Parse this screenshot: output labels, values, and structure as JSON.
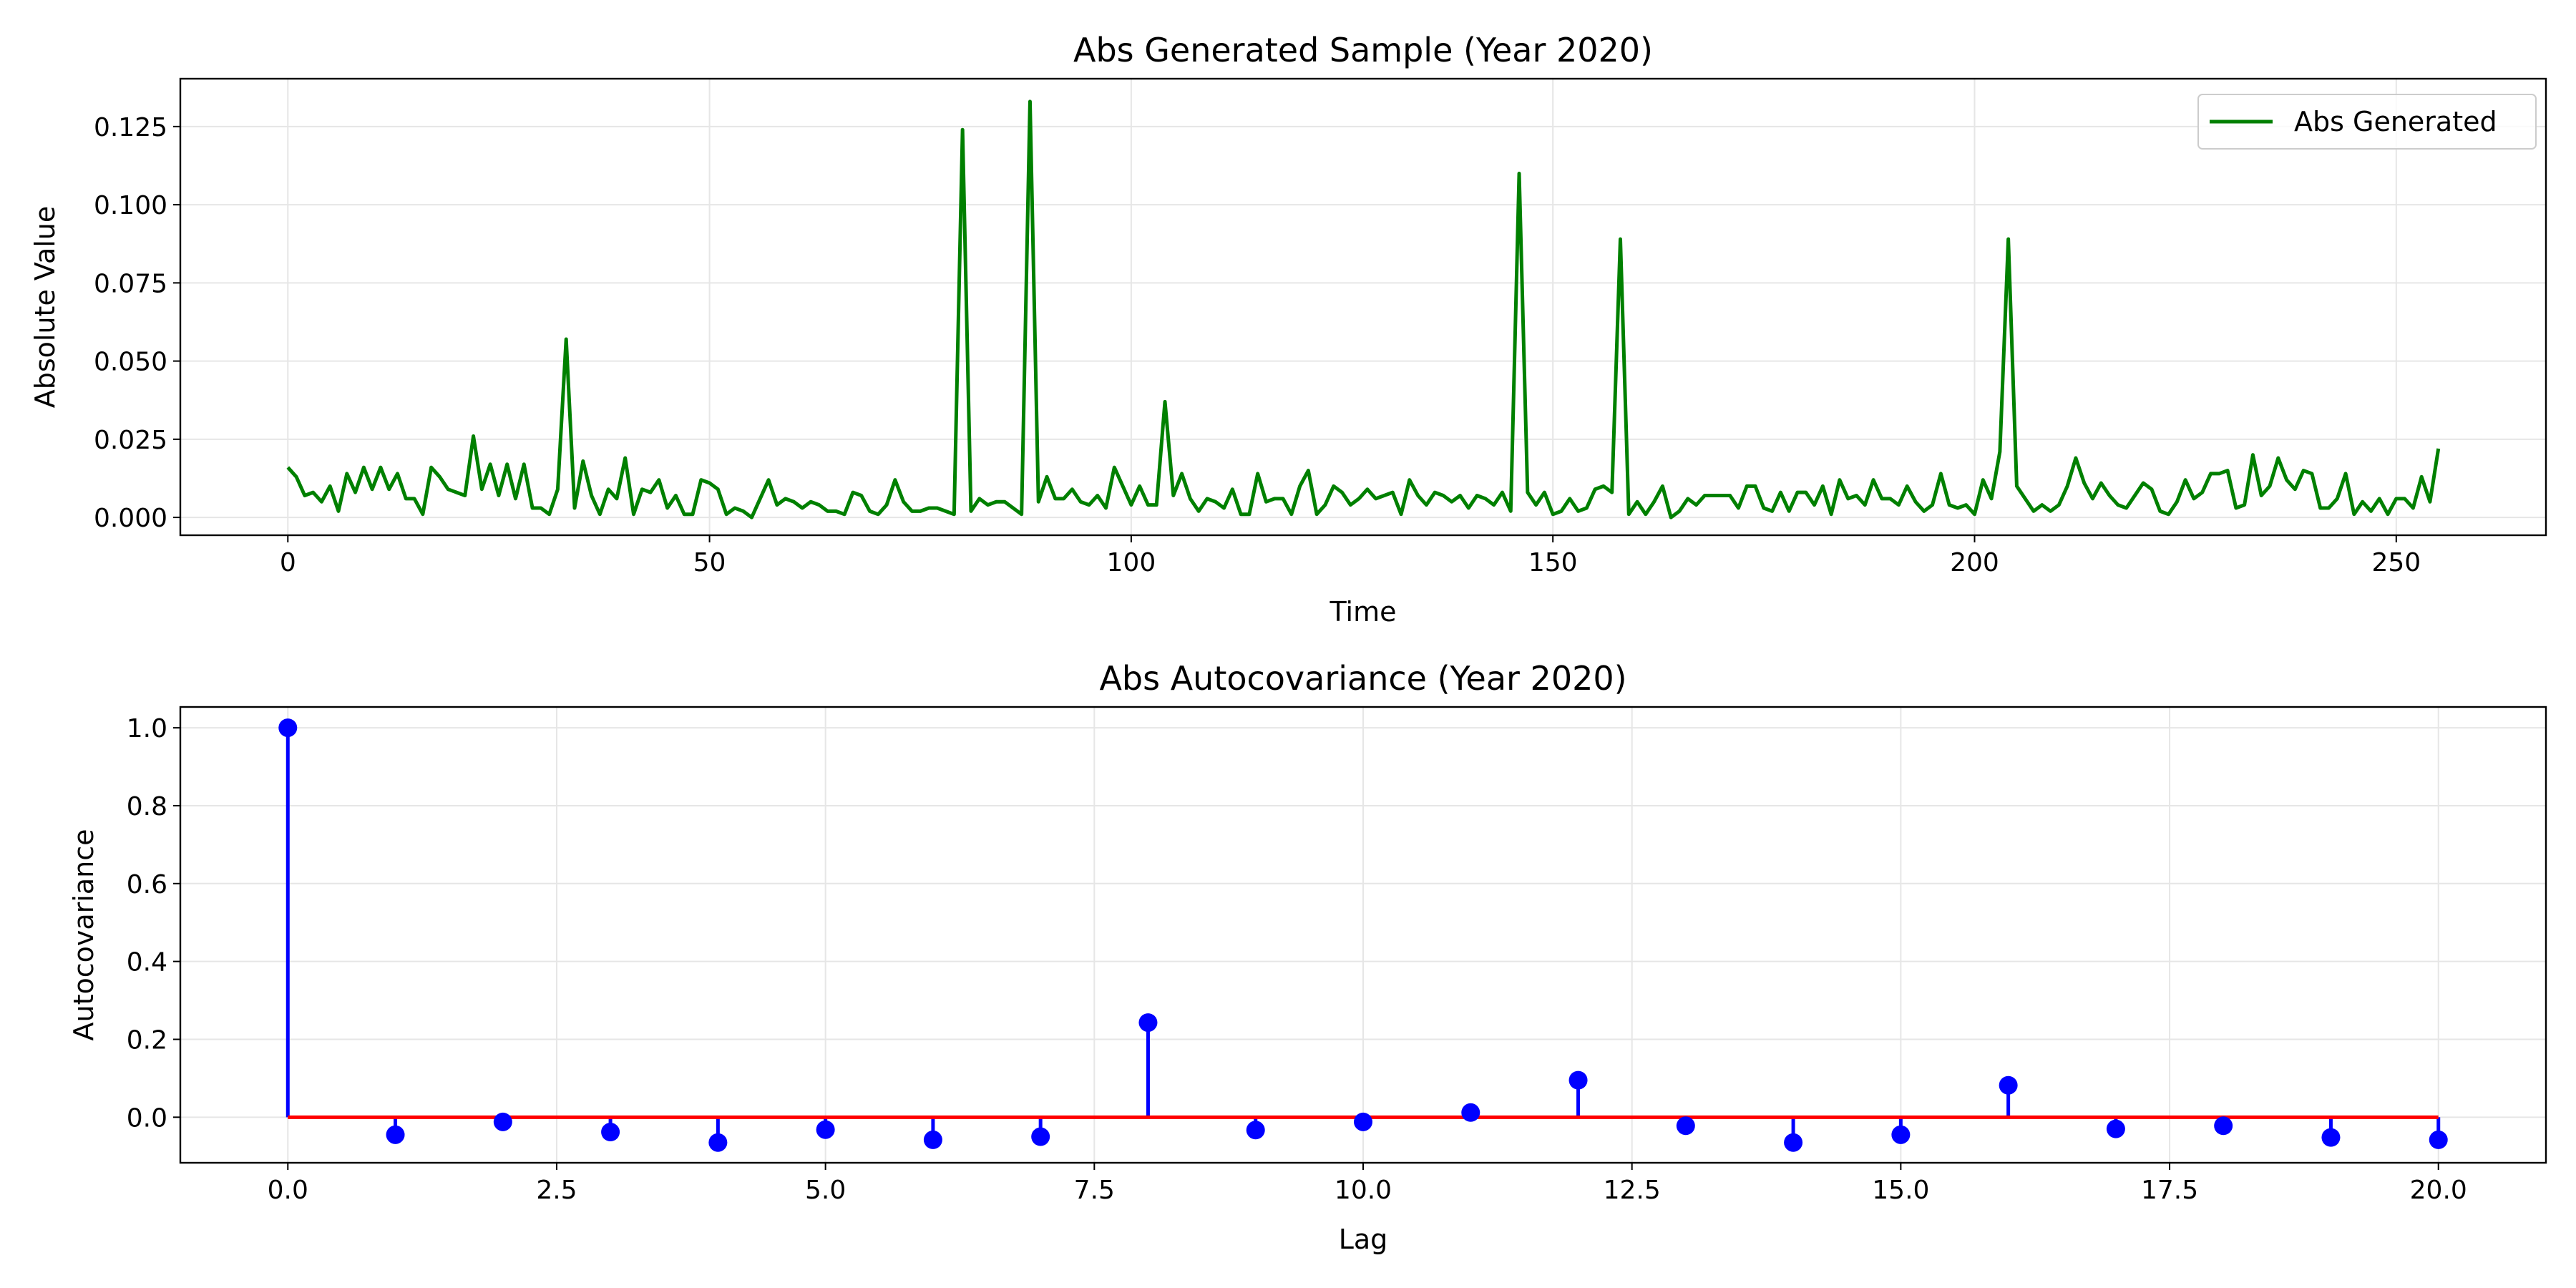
{
  "chart_data": [
    {
      "type": "line",
      "title": "Abs Generated Sample (Year 2020)",
      "xlabel": "Time",
      "ylabel": "Absolute Value",
      "xlim": [
        -12.75,
        267.75
      ],
      "ylim": [
        -0.0057,
        0.1403
      ],
      "xticks": [
        0,
        50,
        100,
        150,
        200,
        250
      ],
      "xtick_labels": [
        "0",
        "50",
        "100",
        "150",
        "200",
        "250"
      ],
      "yticks": [
        0.0,
        0.025,
        0.05,
        0.075,
        0.1,
        0.125
      ],
      "ytick_labels": [
        "0.000",
        "0.025",
        "0.050",
        "0.075",
        "0.100",
        "0.125"
      ],
      "grid": true,
      "legend_position": "top-right",
      "color": "#008000",
      "series": [
        {
          "name": "Abs Generated",
          "x_start": 0,
          "x_step": 1,
          "values": [
            0.016,
            0.013,
            0.007,
            0.008,
            0.005,
            0.01,
            0.002,
            0.014,
            0.008,
            0.016,
            0.009,
            0.016,
            0.009,
            0.014,
            0.006,
            0.006,
            0.001,
            0.016,
            0.013,
            0.009,
            0.008,
            0.007,
            0.026,
            0.009,
            0.017,
            0.007,
            0.017,
            0.006,
            0.017,
            0.003,
            0.003,
            0.001,
            0.009,
            0.057,
            0.003,
            0.018,
            0.007,
            0.001,
            0.009,
            0.006,
            0.019,
            0.001,
            0.009,
            0.008,
            0.012,
            0.003,
            0.007,
            0.001,
            0.001,
            0.012,
            0.011,
            0.009,
            0.001,
            0.003,
            0.002,
            0.0,
            0.006,
            0.012,
            0.004,
            0.006,
            0.005,
            0.003,
            0.005,
            0.004,
            0.002,
            0.002,
            0.001,
            0.008,
            0.007,
            0.002,
            0.001,
            0.004,
            0.012,
            0.005,
            0.002,
            0.002,
            0.003,
            0.003,
            0.002,
            0.001,
            0.124,
            0.002,
            0.006,
            0.004,
            0.005,
            0.005,
            0.003,
            0.001,
            0.133,
            0.005,
            0.013,
            0.006,
            0.006,
            0.009,
            0.005,
            0.004,
            0.007,
            0.003,
            0.016,
            0.01,
            0.004,
            0.01,
            0.004,
            0.004,
            0.037,
            0.007,
            0.014,
            0.006,
            0.002,
            0.006,
            0.005,
            0.003,
            0.009,
            0.001,
            0.001,
            0.014,
            0.005,
            0.006,
            0.006,
            0.001,
            0.01,
            0.015,
            0.001,
            0.004,
            0.01,
            0.008,
            0.004,
            0.006,
            0.009,
            0.006,
            0.007,
            0.008,
            0.001,
            0.012,
            0.007,
            0.004,
            0.008,
            0.007,
            0.005,
            0.007,
            0.003,
            0.007,
            0.006,
            0.004,
            0.008,
            0.002,
            0.11,
            0.008,
            0.004,
            0.008,
            0.001,
            0.002,
            0.006,
            0.002,
            0.003,
            0.009,
            0.01,
            0.008,
            0.089,
            0.001,
            0.005,
            0.001,
            0.005,
            0.01,
            0.0,
            0.002,
            0.006,
            0.004,
            0.007,
            0.007,
            0.007,
            0.007,
            0.003,
            0.01,
            0.01,
            0.003,
            0.002,
            0.008,
            0.002,
            0.008,
            0.008,
            0.004,
            0.01,
            0.001,
            0.012,
            0.006,
            0.007,
            0.004,
            0.012,
            0.006,
            0.006,
            0.004,
            0.01,
            0.005,
            0.002,
            0.004,
            0.014,
            0.004,
            0.003,
            0.004,
            0.001,
            0.012,
            0.006,
            0.021,
            0.089,
            0.01,
            0.006,
            0.002,
            0.004,
            0.002,
            0.004,
            0.01,
            0.019,
            0.011,
            0.006,
            0.011,
            0.007,
            0.004,
            0.003,
            0.007,
            0.011,
            0.009,
            0.002,
            0.001,
            0.005,
            0.012,
            0.006,
            0.008,
            0.014,
            0.014,
            0.015,
            0.003,
            0.004,
            0.02,
            0.007,
            0.01,
            0.019,
            0.012,
            0.009,
            0.015,
            0.014,
            0.003,
            0.003,
            0.006,
            0.014,
            0.001,
            0.005,
            0.002,
            0.006,
            0.001,
            0.006,
            0.006,
            0.003,
            0.013,
            0.005,
            0.022
          ]
        }
      ]
    },
    {
      "type": "stem",
      "title": "Abs Autocovariance (Year 2020)",
      "xlabel": "Lag",
      "ylabel": "Autocovariance",
      "xlim": [
        -1.0,
        21.0
      ],
      "ylim": [
        -0.117,
        1.0535
      ],
      "xticks": [
        0.0,
        2.5,
        5.0,
        7.5,
        10.0,
        12.5,
        15.0,
        17.5,
        20.0
      ],
      "xtick_labels": [
        "0.0",
        "2.5",
        "5.0",
        "7.5",
        "10.0",
        "12.5",
        "15.0",
        "17.5",
        "20.0"
      ],
      "yticks": [
        0.0,
        0.2,
        0.4,
        0.6,
        0.8,
        1.0
      ],
      "ytick_labels": [
        "0.0",
        "0.2",
        "0.4",
        "0.6",
        "0.8",
        "1.0"
      ],
      "grid": true,
      "stem_color": "#0000ff",
      "baseline_color": "#ff0000",
      "x": [
        0,
        1,
        2,
        3,
        4,
        5,
        6,
        7,
        8,
        9,
        10,
        11,
        12,
        13,
        14,
        15,
        16,
        17,
        18,
        19,
        20
      ],
      "values": [
        1.0,
        -0.045,
        -0.012,
        -0.038,
        -0.065,
        -0.032,
        -0.058,
        -0.05,
        0.243,
        -0.033,
        -0.012,
        0.012,
        0.095,
        -0.022,
        -0.065,
        -0.045,
        0.082,
        -0.03,
        -0.022,
        -0.052,
        -0.058
      ]
    }
  ]
}
